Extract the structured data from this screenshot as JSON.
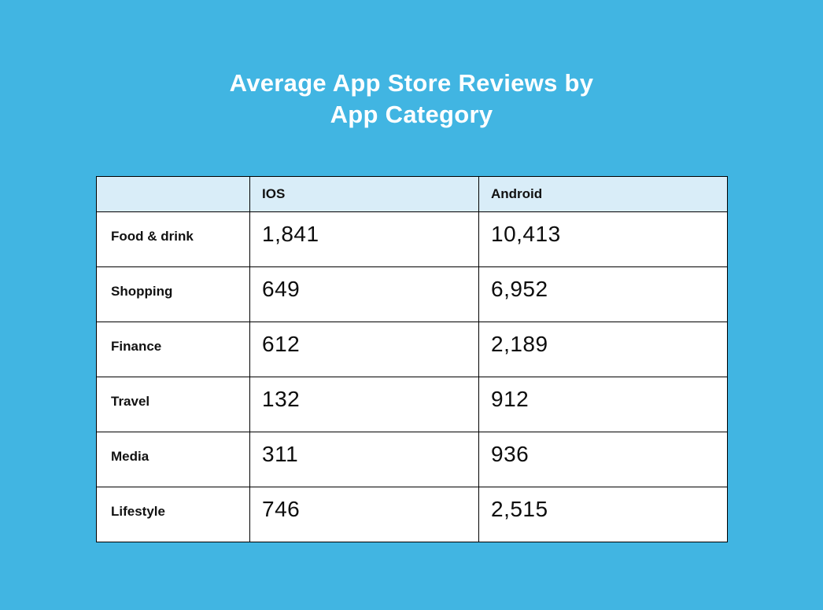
{
  "page": {
    "background_color": "#41b5e2",
    "header_row_color": "#d9edf8",
    "border_color": "#000000",
    "title_color": "#ffffff"
  },
  "header": {
    "title_line1": "Average App Store Reviews by",
    "title_line2": "App Category"
  },
  "table": {
    "columns": [
      "",
      "IOS",
      "Android"
    ],
    "rows": [
      {
        "category": "Food & drink",
        "ios": "1,841",
        "android": "10,413"
      },
      {
        "category": "Shopping",
        "ios": "649",
        "android": "6,952"
      },
      {
        "category": "Finance",
        "ios": "612",
        "android": "2,189"
      },
      {
        "category": "Travel",
        "ios": "132",
        "android": "912"
      },
      {
        "category": "Media",
        "ios": "311",
        "android": "936"
      },
      {
        "category": "Lifestyle",
        "ios": "746",
        "android": "2,515"
      }
    ]
  },
  "chart_data": {
    "type": "table",
    "title": "Average App Store Reviews by App Category",
    "categories": [
      "Food & drink",
      "Shopping",
      "Finance",
      "Travel",
      "Media",
      "Lifestyle"
    ],
    "series": [
      {
        "name": "IOS",
        "values": [
          1841,
          649,
          612,
          132,
          311,
          746
        ]
      },
      {
        "name": "Android",
        "values": [
          10413,
          6952,
          2189,
          912,
          936,
          2515
        ]
      }
    ]
  }
}
